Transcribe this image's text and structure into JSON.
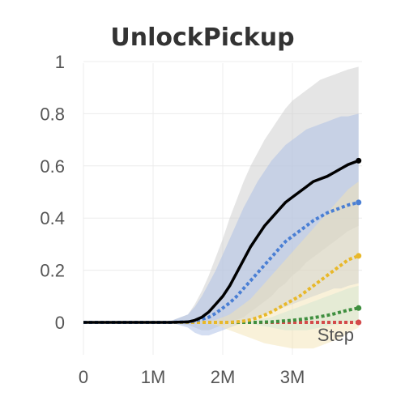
{
  "chart_data": {
    "type": "line",
    "title": "UnlockPickup",
    "xlabel": "Step",
    "ylabel": "",
    "xlim": [
      0,
      4000000
    ],
    "ylim": [
      -0.12,
      1.02
    ],
    "grid": true,
    "x_ticks": [
      {
        "value": 0,
        "label": "0"
      },
      {
        "value": 1000000,
        "label": "1M"
      },
      {
        "value": 2000000,
        "label": "2M"
      },
      {
        "value": 3000000,
        "label": "3M"
      }
    ],
    "y_ticks": [
      {
        "value": 0,
        "label": "0"
      },
      {
        "value": 0.2,
        "label": "0.2"
      },
      {
        "value": 0.4,
        "label": "0.4"
      },
      {
        "value": 0.6,
        "label": "0.6"
      },
      {
        "value": 0.8,
        "label": "0.8"
      },
      {
        "value": 1,
        "label": "1"
      }
    ],
    "x": [
      0,
      250000,
      500000,
      750000,
      1000000,
      1250000,
      1500000,
      1600000,
      1700000,
      1800000,
      1900000,
      2000000,
      2100000,
      2200000,
      2300000,
      2400000,
      2500000,
      2600000,
      2700000,
      2800000,
      2900000,
      3000000,
      3100000,
      3200000,
      3300000,
      3400000,
      3500000,
      3600000,
      3700000,
      3800000,
      3950000
    ],
    "series": [
      {
        "color": "#000000",
        "style": "solid",
        "values": [
          0,
          0,
          0,
          0,
          0,
          0,
          0.002,
          0.008,
          0.02,
          0.04,
          0.07,
          0.1,
          0.14,
          0.19,
          0.24,
          0.29,
          0.33,
          0.37,
          0.4,
          0.43,
          0.46,
          0.48,
          0.5,
          0.52,
          0.54,
          0.55,
          0.56,
          0.575,
          0.59,
          0.605,
          0.62
        ],
        "band_upper": [
          0,
          0,
          0,
          0,
          0,
          0.005,
          0.03,
          0.07,
          0.12,
          0.18,
          0.25,
          0.32,
          0.4,
          0.47,
          0.54,
          0.6,
          0.65,
          0.7,
          0.74,
          0.78,
          0.82,
          0.85,
          0.87,
          0.89,
          0.91,
          0.93,
          0.94,
          0.95,
          0.96,
          0.97,
          0.98
        ],
        "band_lower": [
          0,
          0,
          0,
          0,
          0,
          0,
          -0.01,
          -0.02,
          -0.03,
          -0.03,
          -0.02,
          -0.01,
          0,
          0.01,
          0.02,
          0.04,
          0.06,
          0.08,
          0.1,
          0.13,
          0.15,
          0.18,
          0.2,
          0.23,
          0.25,
          0.27,
          0.29,
          0.31,
          0.33,
          0.35,
          0.37
        ],
        "band_color": "#cccccc"
      },
      {
        "color": "#4a7fd4",
        "style": "dotted",
        "values": [
          0,
          0,
          0,
          0,
          0,
          0,
          0.002,
          0.006,
          0.012,
          0.02,
          0.035,
          0.055,
          0.075,
          0.1,
          0.13,
          0.16,
          0.19,
          0.22,
          0.25,
          0.28,
          0.31,
          0.33,
          0.35,
          0.37,
          0.39,
          0.405,
          0.42,
          0.43,
          0.44,
          0.45,
          0.46
        ],
        "band_upper": [
          0,
          0,
          0,
          0,
          0,
          0.005,
          0.03,
          0.06,
          0.1,
          0.15,
          0.2,
          0.26,
          0.32,
          0.38,
          0.44,
          0.49,
          0.54,
          0.58,
          0.62,
          0.65,
          0.68,
          0.7,
          0.72,
          0.74,
          0.75,
          0.76,
          0.77,
          0.78,
          0.79,
          0.79,
          0.8
        ],
        "band_lower": [
          0,
          0,
          0,
          0,
          0,
          0,
          -0.02,
          -0.04,
          -0.05,
          -0.05,
          -0.04,
          -0.03,
          -0.02,
          -0.01,
          0,
          0.01,
          0.02,
          0.03,
          0.04,
          0.05,
          0.06,
          0.07,
          0.08,
          0.09,
          0.1,
          0.11,
          0.12,
          0.13,
          0.13,
          0.14,
          0.15
        ],
        "band_color": "#a9bee6"
      },
      {
        "color": "#e8b82a",
        "style": "dotted",
        "values": [
          0,
          0,
          0,
          0,
          0,
          0,
          0,
          0,
          0,
          0,
          0,
          0,
          0,
          0.002,
          0.005,
          0.01,
          0.018,
          0.028,
          0.04,
          0.055,
          0.07,
          0.085,
          0.1,
          0.12,
          0.14,
          0.16,
          0.18,
          0.2,
          0.22,
          0.24,
          0.255
        ],
        "band_upper": [
          0,
          0,
          0,
          0,
          0,
          0,
          0,
          0,
          0.002,
          0.005,
          0.01,
          0.02,
          0.03,
          0.05,
          0.07,
          0.09,
          0.12,
          0.15,
          0.18,
          0.21,
          0.24,
          0.27,
          0.3,
          0.33,
          0.36,
          0.39,
          0.42,
          0.45,
          0.48,
          0.51,
          0.54
        ],
        "band_lower": [
          0,
          0,
          0,
          0,
          0,
          0,
          0,
          0,
          -0.002,
          -0.005,
          -0.01,
          -0.02,
          -0.03,
          -0.04,
          -0.05,
          -0.06,
          -0.07,
          -0.08,
          -0.085,
          -0.09,
          -0.095,
          -0.1,
          -0.1,
          -0.1,
          -0.1,
          -0.09,
          -0.08,
          -0.07,
          -0.06,
          -0.04,
          -0.02
        ],
        "band_color": "#f3e3b3"
      },
      {
        "color": "#3f8f3f",
        "style": "dotted",
        "values": [
          0,
          0,
          0,
          0,
          0,
          0,
          0,
          0,
          0,
          0,
          0,
          0,
          0,
          0,
          0,
          0,
          0,
          0.001,
          0.002,
          0.004,
          0.006,
          0.008,
          0.011,
          0.014,
          0.018,
          0.022,
          0.027,
          0.033,
          0.04,
          0.047,
          0.055
        ],
        "band_upper": [
          0,
          0,
          0,
          0,
          0,
          0,
          0,
          0,
          0,
          0,
          0,
          0,
          0,
          0,
          0.002,
          0.005,
          0.01,
          0.015,
          0.02,
          0.03,
          0.04,
          0.05,
          0.06,
          0.07,
          0.08,
          0.09,
          0.1,
          0.11,
          0.12,
          0.13,
          0.14
        ],
        "band_lower": [
          0,
          0,
          0,
          0,
          0,
          0,
          0,
          0,
          0,
          0,
          0,
          0,
          0,
          0,
          -0.002,
          -0.005,
          -0.01,
          -0.015,
          -0.02,
          -0.025,
          -0.03,
          -0.03,
          -0.03,
          -0.03,
          -0.025,
          -0.02,
          -0.015,
          -0.01,
          -0.005,
          0,
          0
        ],
        "band_color": "#d2e6d2"
      },
      {
        "color": "#d44a4a",
        "style": "dotted",
        "values": [
          0,
          0,
          0,
          0,
          0,
          0,
          0,
          0,
          0,
          0,
          0,
          0,
          0,
          0,
          0,
          0,
          0,
          0,
          0,
          0,
          0,
          0,
          0,
          0,
          0,
          0,
          0,
          0,
          0,
          0,
          0
        ]
      }
    ]
  }
}
